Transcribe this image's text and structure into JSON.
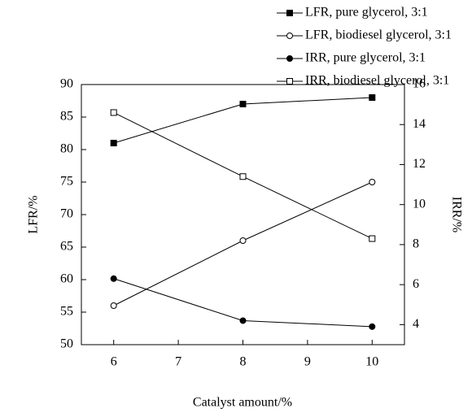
{
  "chart_data": {
    "type": "line",
    "x_label": "Catalyst amount/%",
    "y_label": "LFR/%",
    "y2_label": "IRR/%",
    "x": [
      6,
      8,
      10
    ],
    "xlim": [
      5.5,
      10.5
    ],
    "xticks": [
      6,
      7,
      8,
      9,
      10
    ],
    "ylim": [
      50,
      90
    ],
    "yticks": [
      50,
      55,
      60,
      65,
      70,
      75,
      80,
      85,
      90
    ],
    "y2lim": [
      3,
      16
    ],
    "y2ticks": [
      4,
      6,
      8,
      10,
      12,
      14,
      16
    ],
    "series": [
      {
        "name": "LFR, pure glycerol, 3:1",
        "color": "#000000",
        "marker": "square",
        "filled": true,
        "values": [
          81,
          87,
          88
        ]
      },
      {
        "name": "LFR, biodiesel glycerol, 3:1",
        "color": "#000000",
        "marker": "circle",
        "filled": false,
        "values": [
          56,
          66,
          75
        ]
      },
      {
        "name": "IRR, pure glycerol, 3:1",
        "color": "#000000",
        "marker": "circle",
        "filled": true,
        "axis": "y2",
        "values": [
          6.3,
          4.2,
          3.9
        ]
      },
      {
        "name": "IRR, biodiesel glycerol, 3:1",
        "color": "#000000",
        "marker": "square",
        "filled": false,
        "axis": "y2",
        "values": [
          14.6,
          11.4,
          8.3
        ]
      }
    ]
  }
}
